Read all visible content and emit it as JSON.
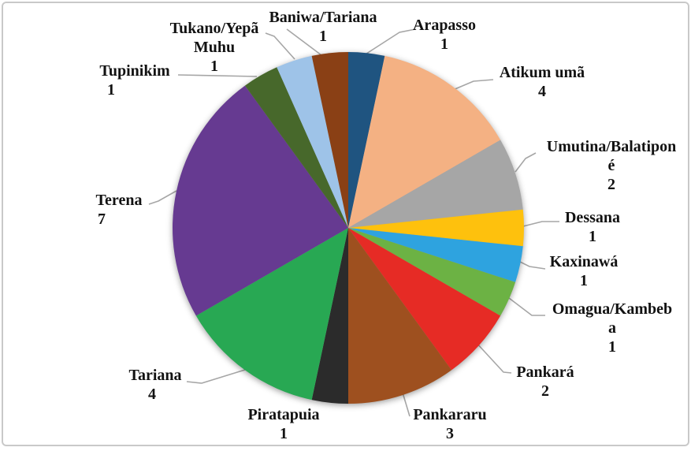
{
  "chart_data": {
    "type": "pie",
    "title": "",
    "total": 30,
    "start_angle_deg": 0,
    "direction": "clockwise",
    "legend_position": "none",
    "labels_style": "outside labels with category name and value, gray leader lines",
    "slices": [
      {
        "label": "Arapasso",
        "label_lines": [
          "Arapasso"
        ],
        "value": 1,
        "color": "#1F5480"
      },
      {
        "label": "Atikum umã",
        "label_lines": [
          "Atikum umã"
        ],
        "value": 4,
        "color": "#F4B183"
      },
      {
        "label": "Umutina/Balatiponé",
        "label_lines": [
          "Umutina/Balatipon",
          "é"
        ],
        "value": 2,
        "color": "#A6A6A6"
      },
      {
        "label": "Dessana",
        "label_lines": [
          "Dessana"
        ],
        "value": 1,
        "color": "#FEC10D"
      },
      {
        "label": "Kaxinawá",
        "label_lines": [
          "Kaxinawá"
        ],
        "value": 1,
        "color": "#2EA3DF"
      },
      {
        "label": "Omagua/Kambeba",
        "label_lines": [
          "Omagua/Kambeb",
          "a"
        ],
        "value": 1,
        "color": "#6CB244"
      },
      {
        "label": "Pankará",
        "label_lines": [
          "Pankará"
        ],
        "value": 2,
        "color": "#E62B25"
      },
      {
        "label": "Pankararu",
        "label_lines": [
          "Pankararu"
        ],
        "value": 3,
        "color": "#9E501F"
      },
      {
        "label": "Piratapuia",
        "label_lines": [
          "Piratapuia"
        ],
        "value": 1,
        "color": "#2B2B2B"
      },
      {
        "label": "Tariana",
        "label_lines": [
          "Tariana"
        ],
        "value": 4,
        "color": "#28A853"
      },
      {
        "label": "Terena",
        "label_lines": [
          "Terena"
        ],
        "value": 7,
        "color": "#663A91"
      },
      {
        "label": "Tupinikim",
        "label_lines": [
          "Tupinikim"
        ],
        "value": 1,
        "color": "#47682B"
      },
      {
        "label": "Tukano/Yepã Muhu",
        "label_lines": [
          "Tukano/Yepã",
          "Muhu"
        ],
        "value": 1,
        "color": "#9EC3E8"
      },
      {
        "label": "Baniwa/Tariana",
        "label_lines": [
          "Baniwa/Tariana"
        ],
        "value": 1,
        "color": "#8A4015"
      }
    ]
  },
  "style": {
    "background": "#FFFFFF",
    "frame_border_color": "#C9C9C9",
    "label_text_color": "#121212",
    "leader_line_color": "#A6A6A6"
  }
}
